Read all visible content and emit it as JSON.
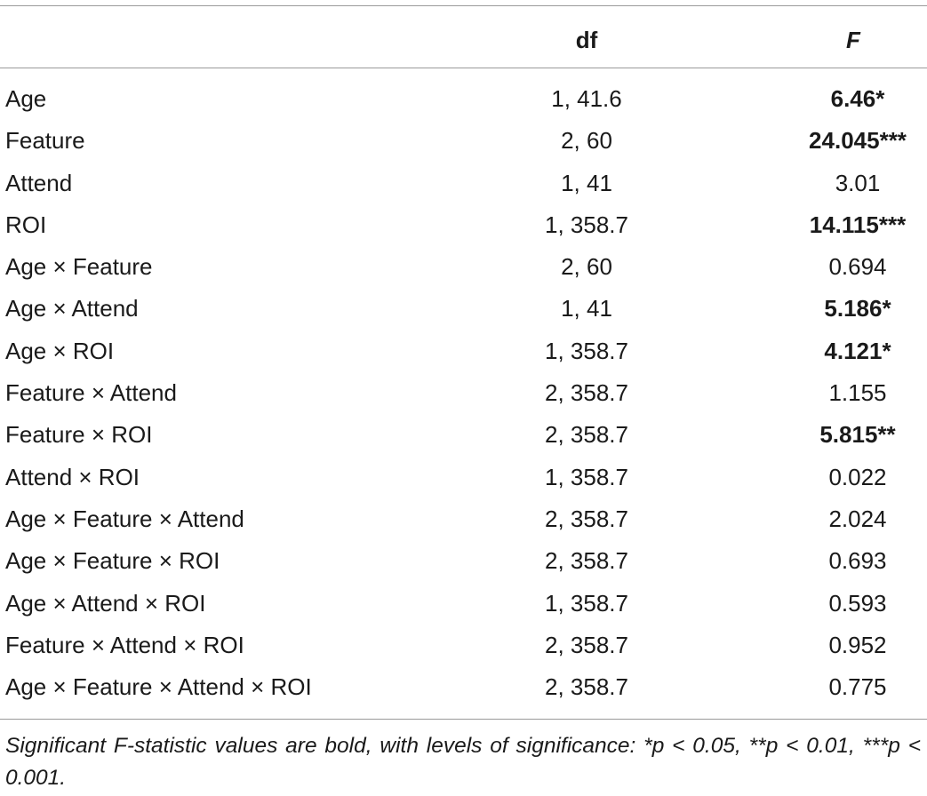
{
  "table": {
    "header": {
      "effect": "",
      "df": "df",
      "f": "F"
    },
    "rows": [
      {
        "effect": "Age",
        "df": "1, 41.6",
        "f": "6.46*",
        "bold": true
      },
      {
        "effect": "Feature",
        "df": "2, 60",
        "f": "24.045***",
        "bold": true
      },
      {
        "effect": "Attend",
        "df": "1, 41",
        "f": "3.01",
        "bold": false
      },
      {
        "effect": "ROI",
        "df": "1, 358.7",
        "f": "14.115***",
        "bold": true
      },
      {
        "effect": "Age × Feature",
        "df": "2, 60",
        "f": "0.694",
        "bold": false
      },
      {
        "effect": "Age × Attend",
        "df": "1, 41",
        "f": "5.186*",
        "bold": true
      },
      {
        "effect": "Age × ROI",
        "df": "1, 358.7",
        "f": "4.121*",
        "bold": true
      },
      {
        "effect": "Feature × Attend",
        "df": "2, 358.7",
        "f": "1.155",
        "bold": false
      },
      {
        "effect": "Feature × ROI",
        "df": "2, 358.7",
        "f": "5.815**",
        "bold": true
      },
      {
        "effect": "Attend × ROI",
        "df": "1, 358.7",
        "f": "0.022",
        "bold": false
      },
      {
        "effect": "Age × Feature × Attend",
        "df": "2, 358.7",
        "f": "2.024",
        "bold": false
      },
      {
        "effect": "Age × Feature × ROI",
        "df": "2, 358.7",
        "f": "0.693",
        "bold": false
      },
      {
        "effect": "Age × Attend × ROI",
        "df": "1, 358.7",
        "f": "0.593",
        "bold": false
      },
      {
        "effect": "Feature × Attend × ROI",
        "df": "2, 358.7",
        "f": "0.952",
        "bold": false
      },
      {
        "effect": "Age × Feature × Attend × ROI",
        "df": "2, 358.7",
        "f": "0.775",
        "bold": false
      }
    ],
    "footnote": "Significant F-statistic values are bold, with levels of significance: *p < 0.05, **p < 0.01, ***p < 0.001."
  }
}
